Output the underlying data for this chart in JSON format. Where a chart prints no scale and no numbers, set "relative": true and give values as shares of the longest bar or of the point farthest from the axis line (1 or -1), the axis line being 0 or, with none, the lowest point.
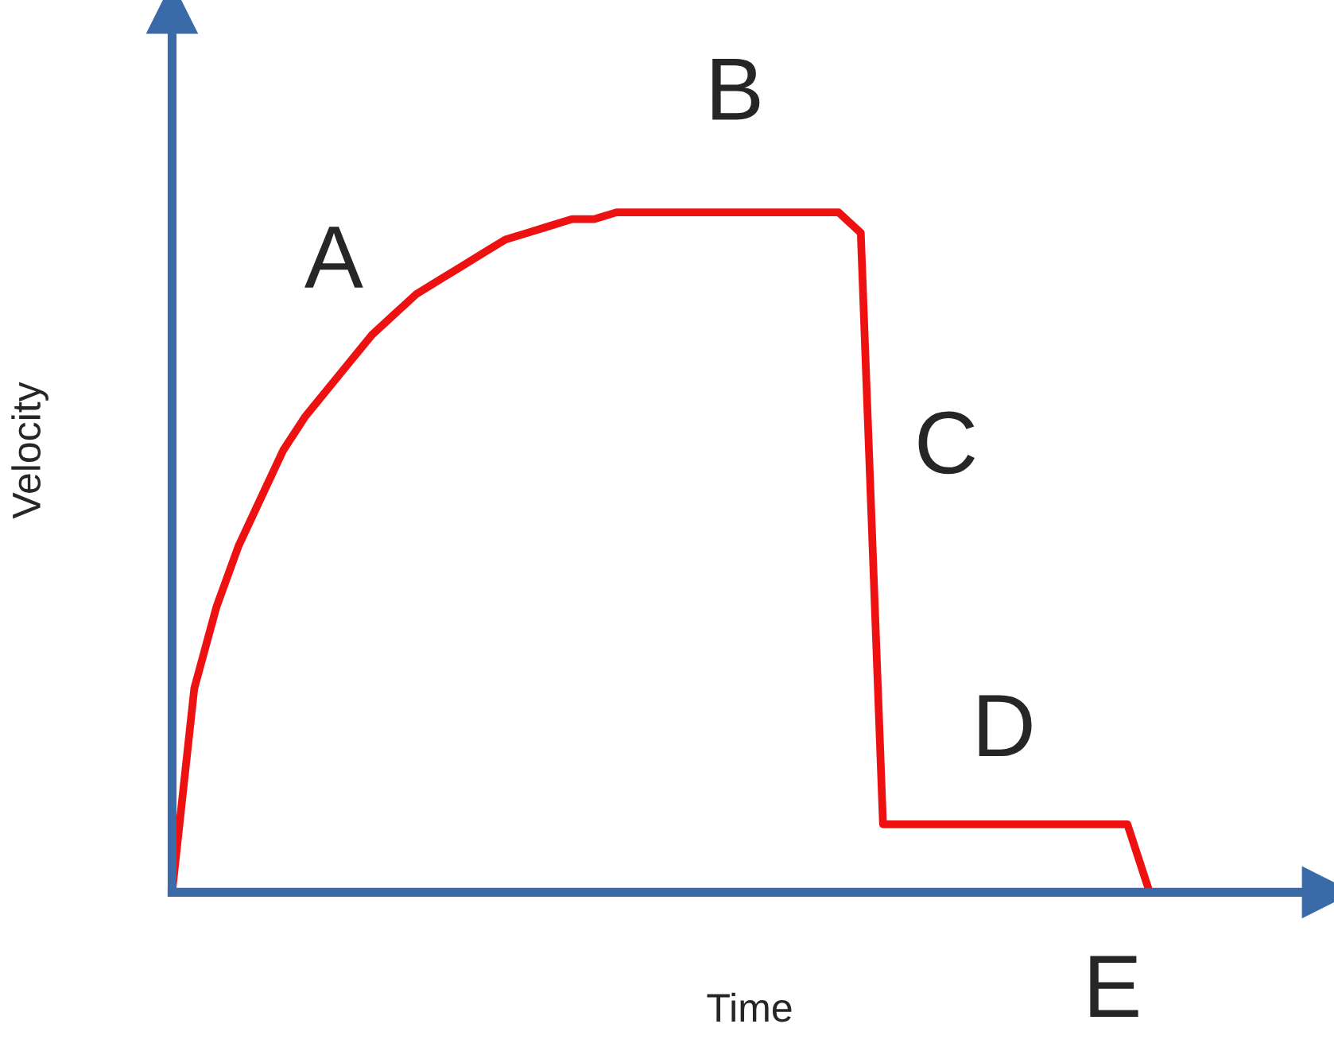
{
  "chart_data": {
    "type": "line",
    "relative": true,
    "xlabel": "Time",
    "ylabel": "Velocity",
    "grid": false,
    "legend": false,
    "marker": "none",
    "line_style": "solid",
    "categories": [
      null,
      null,
      null,
      null,
      null,
      null,
      null,
      null,
      null,
      null,
      null,
      null,
      null,
      null,
      null,
      null,
      null,
      null,
      null,
      null,
      null,
      null,
      null,
      null,
      null,
      null,
      null,
      null,
      null,
      null,
      null,
      null,
      null,
      null,
      null,
      null,
      null,
      null,
      null,
      null,
      null,
      null,
      null,
      null,
      null,
      null,
      null,
      null,
      null,
      null,
      null,
      null,
      null
    ],
    "series": [
      {
        "color": "#ee1111",
        "values": [
          0,
          0.3,
          0.42,
          0.51,
          0.58,
          0.65,
          0.7,
          0.74,
          0.78,
          0.82,
          0.85,
          0.88,
          0.9,
          0.92,
          0.94,
          0.96,
          0.97,
          0.98,
          0.99,
          0.99,
          1.0,
          1.0,
          1.0,
          1.0,
          1.0,
          1.0,
          1.0,
          1.0,
          1.0,
          1.0,
          1.0,
          0.97,
          0.1,
          0.1,
          0.1,
          0.1,
          0.1,
          0.1,
          0.1,
          0.1,
          0.1,
          0.1,
          0.1,
          0.1,
          0,
          null,
          null,
          null,
          null,
          null,
          null,
          null,
          null
        ]
      }
    ],
    "annotations": [
      "A",
      "B",
      "C",
      "D",
      "E"
    ]
  }
}
